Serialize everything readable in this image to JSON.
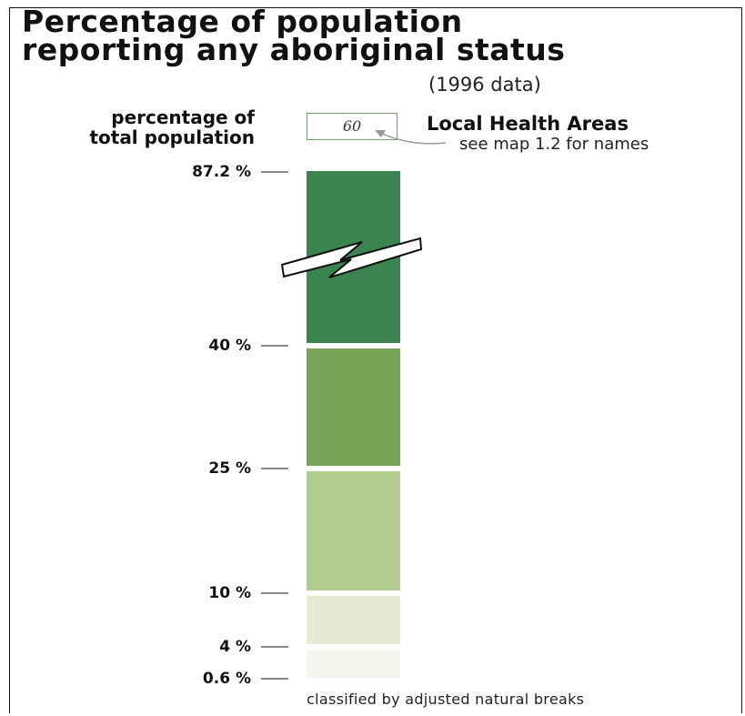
{
  "title_line1": "Percentage of population",
  "title_line2": "reporting any aboriginal status",
  "subtitle": "(1996 data)",
  "ylabel_line1": "percentage of",
  "ylabel_line2": "total population",
  "reference_box_value": "60",
  "lha_title": "Local Health Areas",
  "lha_subtitle": "see map 1.2 for names",
  "breaks": [
    {
      "label": "87.2 %",
      "value": 87.2
    },
    {
      "label": "40 %",
      "value": 40
    },
    {
      "label": "25 %",
      "value": 25
    },
    {
      "label": "10 %",
      "value": 10
    },
    {
      "label": "4 %",
      "value": 4
    },
    {
      "label": "0.6 %",
      "value": 0.6
    }
  ],
  "classes": [
    {
      "from": 40,
      "to": 87.2,
      "color": "#3b844f"
    },
    {
      "from": 25,
      "to": 40,
      "color": "#79a558"
    },
    {
      "from": 10,
      "to": 25,
      "color": "#b2cc8d"
    },
    {
      "from": 4,
      "to": 10,
      "color": "#e5ecd3"
    },
    {
      "from": 0.6,
      "to": 4,
      "color": "#f3f5ee"
    }
  ],
  "footnote": "classified by adjusted natural breaks"
}
